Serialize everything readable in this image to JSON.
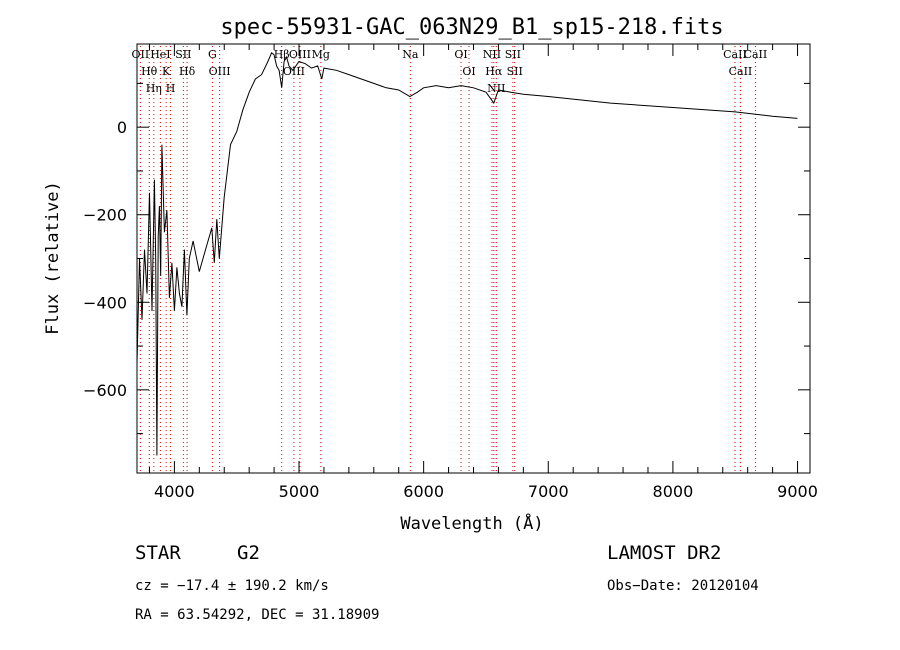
{
  "chart_data": {
    "type": "line",
    "title": "spec-55931-GAC_063N29_B1_sp15-218.fits",
    "xlabel": "Wavelength (Å)",
    "ylabel": "Flux (relative)",
    "xlim": [
      3700,
      9100
    ],
    "ylim": [
      -790,
      190
    ],
    "xticks": [
      4000,
      5000,
      6000,
      7000,
      8000,
      9000
    ],
    "yticks": [
      0,
      -200,
      -400,
      -600
    ],
    "x": [
      3700,
      3720,
      3740,
      3760,
      3780,
      3800,
      3820,
      3840,
      3850,
      3860,
      3870,
      3880,
      3890,
      3900,
      3920,
      3940,
      3960,
      3980,
      4000,
      4020,
      4040,
      4060,
      4080,
      4100,
      4120,
      4150,
      4200,
      4250,
      4280,
      4300,
      4320,
      4340,
      4360,
      4400,
      4450,
      4500,
      4550,
      4600,
      4650,
      4700,
      4750,
      4780,
      4800,
      4820,
      4840,
      4861,
      4880,
      4900,
      4920,
      4950,
      5000,
      5050,
      5100,
      5150,
      5183,
      5200,
      5300,
      5400,
      5500,
      5600,
      5700,
      5800,
      5890,
      5950,
      6000,
      6100,
      6200,
      6300,
      6400,
      6500,
      6563,
      6600,
      6700,
      6800,
      7000,
      7500,
      8000,
      8500,
      8800,
      9000
    ],
    "y": [
      -540,
      -300,
      -440,
      -280,
      -380,
      -150,
      -420,
      -120,
      -300,
      -750,
      -250,
      -180,
      -340,
      -40,
      -240,
      -190,
      -390,
      -310,
      -420,
      -320,
      -380,
      -410,
      -280,
      -430,
      -300,
      -260,
      -330,
      -280,
      -250,
      -230,
      -310,
      -210,
      -300,
      -160,
      -40,
      -10,
      40,
      80,
      110,
      120,
      150,
      170,
      165,
      140,
      130,
      90,
      150,
      160,
      140,
      130,
      150,
      145,
      135,
      140,
      110,
      135,
      130,
      120,
      110,
      100,
      90,
      85,
      70,
      80,
      90,
      95,
      90,
      95,
      90,
      80,
      55,
      85,
      80,
      75,
      70,
      55,
      45,
      35,
      25,
      20
    ],
    "lines": [
      {
        "label": "OII",
        "wave": 3727
      },
      {
        "label": "Hθ",
        "wave": 3798
      },
      {
        "label": "Hη",
        "wave": 3835
      },
      {
        "label": "HeI",
        "wave": 3888
      },
      {
        "label": "K",
        "wave": 3934
      },
      {
        "label": "H",
        "wave": 3969
      },
      {
        "label": "SII",
        "wave": 4072
      },
      {
        "label": "Hδ",
        "wave": 4102
      },
      {
        "label": "G",
        "wave": 4305
      },
      {
        "label": "OIII",
        "wave": 4363
      },
      {
        "label": "Hβ",
        "wave": 4861
      },
      {
        "label": "OIII",
        "wave": 4959
      },
      {
        "label": "OIII",
        "wave": 5007
      },
      {
        "label": "Mg",
        "wave": 5175
      },
      {
        "label": "Na",
        "wave": 5893
      },
      {
        "label": "OI",
        "wave": 6300
      },
      {
        "label": "OI",
        "wave": 6364
      },
      {
        "label": "NII",
        "wave": 6548
      },
      {
        "label": "Hα",
        "wave": 6563
      },
      {
        "label": "NII",
        "wave": 6583
      },
      {
        "label": "SII",
        "wave": 6716
      },
      {
        "label": "SII",
        "wave": 6731
      },
      {
        "label": "CaII",
        "wave": 8498
      },
      {
        "label": "CaII",
        "wave": 8542
      },
      {
        "label": "CaII",
        "wave": 8662
      }
    ]
  },
  "info": {
    "class_label": "STAR",
    "subclass": "G2",
    "survey": "LAMOST DR2",
    "cz": "cz = −17.4 ± 190.2 km/s",
    "obs_date": "Obs−Date: 20120104",
    "radec": "RA =  63.54292, DEC =  31.18909"
  }
}
